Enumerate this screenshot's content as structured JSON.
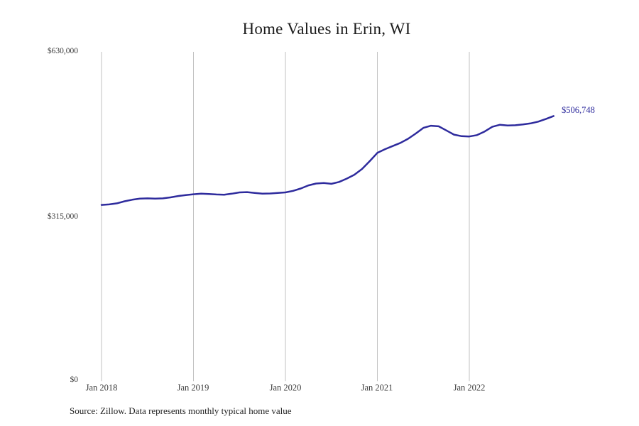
{
  "title": "Home Values in Erin, WI",
  "source_note": "Source: Zillow. Data represents monthly typical home value",
  "end_label": "$506,748",
  "colors": {
    "line": "#2e2b9d",
    "grid": "#c2c2c2",
    "title_text": "#1c1c1c",
    "axis_text": "#3a3a3a",
    "end_label_text": "#2e2b9d",
    "background": "#ffffff"
  },
  "y_axis": {
    "ticks": [
      {
        "label": "$630,000",
        "value": 630000
      },
      {
        "label": "$315,000",
        "value": 315000
      },
      {
        "label": "$0",
        "value": 0
      }
    ]
  },
  "x_axis": {
    "ticks": [
      "Jan 2018",
      "Jan 2019",
      "Jan 2020",
      "Jan 2021",
      "Jan 2022"
    ]
  },
  "chart_data": {
    "type": "line",
    "title": "Home Values in Erin, WI",
    "xlabel": "",
    "ylabel": "",
    "ylim": [
      0,
      630000
    ],
    "y_tick_values": [
      0,
      315000,
      630000
    ],
    "x_tick_labels": [
      "Jan 2018",
      "Jan 2019",
      "Jan 2020",
      "Jan 2021",
      "Jan 2022"
    ],
    "grid": "vertical-only",
    "legend": "none",
    "frequency": "monthly",
    "end_point_value": 506748,
    "end_point_label": "$506,748",
    "x": [
      "2018-01",
      "2018-02",
      "2018-03",
      "2018-04",
      "2018-05",
      "2018-06",
      "2018-07",
      "2018-08",
      "2018-09",
      "2018-10",
      "2018-11",
      "2018-12",
      "2019-01",
      "2019-02",
      "2019-03",
      "2019-04",
      "2019-05",
      "2019-06",
      "2019-07",
      "2019-08",
      "2019-09",
      "2019-10",
      "2019-11",
      "2019-12",
      "2020-01",
      "2020-02",
      "2020-03",
      "2020-04",
      "2020-05",
      "2020-06",
      "2020-07",
      "2020-08",
      "2020-09",
      "2020-10",
      "2020-11",
      "2020-12",
      "2021-01",
      "2021-02",
      "2021-03",
      "2021-04",
      "2021-05",
      "2021-06",
      "2021-07",
      "2021-08",
      "2021-09",
      "2021-10",
      "2021-11",
      "2021-12",
      "2022-01",
      "2022-02",
      "2022-03",
      "2022-04",
      "2022-05",
      "2022-06",
      "2022-07",
      "2022-08",
      "2022-09",
      "2022-10",
      "2022-11",
      "2022-12"
    ],
    "values": [
      336000,
      337000,
      339000,
      343000,
      346000,
      348000,
      348500,
      348000,
      348500,
      350500,
      353000,
      355000,
      356500,
      357500,
      357000,
      356000,
      355500,
      357500,
      360000,
      360500,
      359000,
      357500,
      358000,
      359000,
      360000,
      363000,
      367500,
      373500,
      377000,
      378000,
      376500,
      380000,
      386500,
      394000,
      405000,
      420000,
      436000,
      443000,
      449000,
      455000,
      463000,
      473000,
      484000,
      488000,
      487000,
      479000,
      471000,
      468000,
      467500,
      470000,
      477000,
      486000,
      490000,
      488500,
      489000,
      490500,
      492500,
      496000,
      501000,
      506748
    ]
  }
}
